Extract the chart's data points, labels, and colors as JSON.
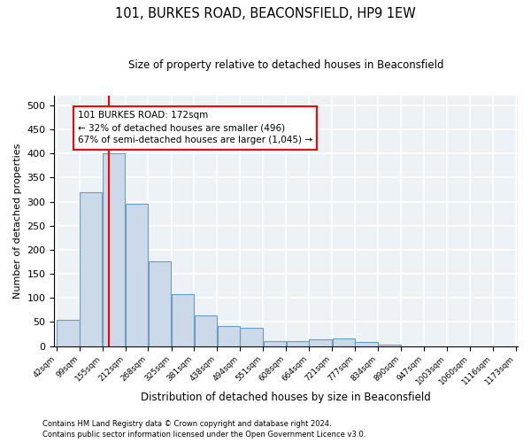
{
  "title": "101, BURKES ROAD, BEACONSFIELD, HP9 1EW",
  "subtitle": "Size of property relative to detached houses in Beaconsfield",
  "xlabel": "Distribution of detached houses by size in Beaconsfield",
  "ylabel": "Number of detached properties",
  "footnote1": "Contains HM Land Registry data © Crown copyright and database right 2024.",
  "footnote2": "Contains public sector information licensed under the Open Government Licence v3.0.",
  "bar_color": "#ccd9e8",
  "bar_edge_color": "#6a9ec0",
  "vline_x": 172,
  "vline_color": "red",
  "annotation_title": "101 BURKES ROAD: 172sqm",
  "annotation_line2": "← 32% of detached houses are smaller (496)",
  "annotation_line3": "67% of semi-detached houses are larger (1,045) →",
  "annotation_box_color": "red",
  "bins": [
    42,
    99,
    155,
    212,
    268,
    325,
    381,
    438,
    494,
    551,
    608,
    664,
    721,
    777,
    834,
    890,
    947,
    1003,
    1060,
    1116,
    1173
  ],
  "bar_heights": [
    55,
    320,
    400,
    295,
    175,
    108,
    63,
    42,
    37,
    11,
    10,
    14,
    15,
    8,
    2,
    0,
    0,
    0,
    0,
    0
  ],
  "ylim": [
    0,
    520
  ],
  "yticks": [
    0,
    50,
    100,
    150,
    200,
    250,
    300,
    350,
    400,
    450,
    500
  ],
  "background_color": "#edf2f7",
  "grid_color": "white"
}
